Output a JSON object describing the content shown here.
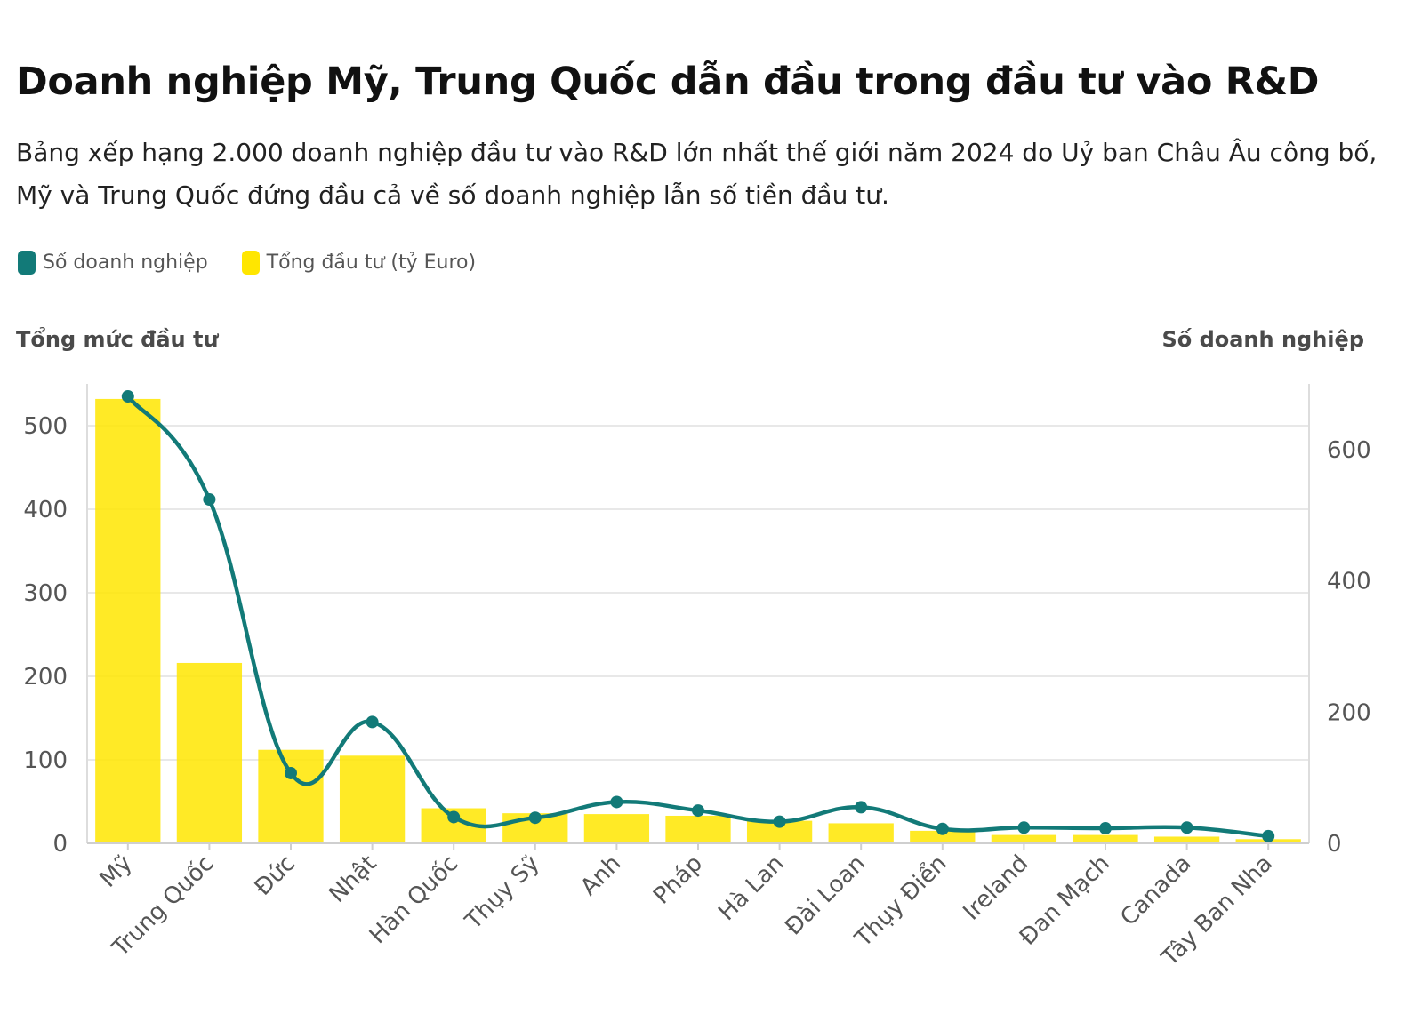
{
  "title": "Doanh nghiệp Mỹ, Trung Quốc dẫn đầu trong đầu tư vào R&D",
  "subtitle": "Bảng xếp hạng 2.000 doanh nghiệp đầu tư vào R&D lớn nhất thế giới năm 2024 do Uỷ ban Châu Âu công bố, Mỹ và Trung Quốc đứng đầu cả về số doanh nghiệp lẫn số tiền đầu tư.",
  "legend": [
    {
      "label": "Số doanh nghiệp",
      "color": "#127a78"
    },
    {
      "label": "Tổng đầu tư (tỷ Euro)",
      "color": "#ffe600"
    }
  ],
  "axis_titles": {
    "left": "Tổng mức đầu tư",
    "right": "Số doanh nghiệp"
  },
  "chart_data": {
    "type": "bar",
    "categories": [
      "Mỹ",
      "Trung Quốc",
      "Đức",
      "Nhật",
      "Hàn Quốc",
      "Thụy Sỹ",
      "Anh",
      "Pháp",
      "Hà Lan",
      "Đài Loan",
      "Thụy Điển",
      "Ireland",
      "Đan Mạch",
      "Canada",
      "Tây Ban Nha"
    ],
    "series": [
      {
        "name": "Tổng đầu tư (tỷ Euro)",
        "type": "bar",
        "axis": "left",
        "color": "#ffe600",
        "values": [
          532,
          216,
          112,
          105,
          42,
          36,
          35,
          33,
          27,
          24,
          15,
          10,
          10,
          8,
          5
        ]
      },
      {
        "name": "Số doanh nghiệp",
        "type": "line",
        "axis": "right",
        "color": "#127a78",
        "values": [
          681,
          524,
          107,
          185,
          40,
          39,
          63,
          50,
          33,
          55,
          22,
          24,
          23,
          24,
          11
        ]
      }
    ],
    "y_left": {
      "range": [
        0,
        550
      ],
      "ticks": [
        0,
        100,
        200,
        300,
        400,
        500
      ]
    },
    "y_right": {
      "range": [
        0,
        700
      ],
      "ticks": [
        0,
        200,
        400,
        600
      ]
    },
    "grid": true,
    "legend_position": "top-left"
  }
}
